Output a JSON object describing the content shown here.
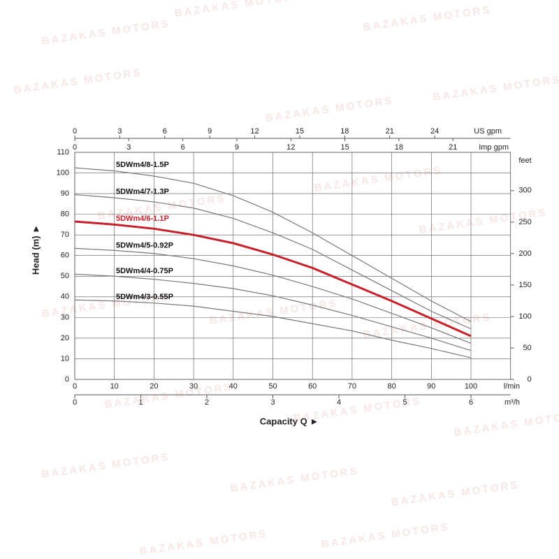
{
  "chart_data": {
    "type": "line",
    "watermark": "BAZAKAS MOTORS",
    "y_label": "Head (m) ►",
    "x_label": "Capacity Q ►",
    "x": [
      0,
      10,
      20,
      30,
      40,
      50,
      60,
      70,
      80,
      90,
      100
    ],
    "xlim": [
      0,
      110
    ],
    "xticks": [
      0,
      10,
      20,
      30,
      40,
      50,
      60,
      70,
      80,
      90,
      100
    ],
    "x_unit": "l/min",
    "x2lim": [
      0,
      6.6
    ],
    "x2ticks": [
      0,
      1,
      2,
      3,
      4,
      5,
      6
    ],
    "x2_unit": "m³/h",
    "x3lim": [
      0,
      29.06
    ],
    "x3ticks": [
      0,
      3,
      6,
      9,
      12,
      15,
      18,
      21,
      24
    ],
    "x3_unit": "US gpm",
    "x4lim": [
      0,
      24.2
    ],
    "x4ticks": [
      0,
      3,
      6,
      9,
      12,
      15,
      18,
      21
    ],
    "x4_unit": "Imp gpm",
    "ylim": [
      0,
      110
    ],
    "yticks": [
      0,
      10,
      20,
      30,
      40,
      50,
      60,
      70,
      80,
      90,
      100,
      110
    ],
    "y2lim": [
      0,
      360.9
    ],
    "y2ticks": [
      0,
      50,
      100,
      150,
      200,
      250,
      300
    ],
    "y2_unit": "feet",
    "grid": true,
    "series": [
      {
        "name": "5DWm4/8-1.5P",
        "color": "#777777",
        "values": [
          102.5,
          101,
          98.5,
          95,
          89,
          81,
          71,
          60,
          49,
          38,
          28
        ]
      },
      {
        "name": "5DWm4/7-1.3P",
        "color": "#777777",
        "values": [
          89.5,
          88,
          86,
          83,
          78,
          71,
          63,
          53,
          43,
          33,
          24.5
        ]
      },
      {
        "name": "5DWm4/6-1.1P",
        "color": "#c8202a",
        "values": [
          76.5,
          75,
          73,
          70,
          66,
          60.5,
          54,
          46,
          38,
          29.5,
          21
        ]
      },
      {
        "name": "5DWm4/5-0.92P",
        "color": "#777777",
        "values": [
          63.5,
          62.5,
          61,
          58.5,
          55,
          50.5,
          45,
          39,
          32,
          25,
          17.5
        ]
      },
      {
        "name": "5DWm4/4-0.75P",
        "color": "#777777",
        "values": [
          51,
          50,
          48.5,
          46.5,
          44,
          40.5,
          36,
          31,
          25.5,
          20,
          14
        ]
      },
      {
        "name": "5DWm4/3-0.55P",
        "color": "#777777",
        "values": [
          38.5,
          38,
          37,
          35.5,
          33,
          30.5,
          27,
          23.5,
          19,
          15,
          10.5
        ]
      }
    ]
  }
}
